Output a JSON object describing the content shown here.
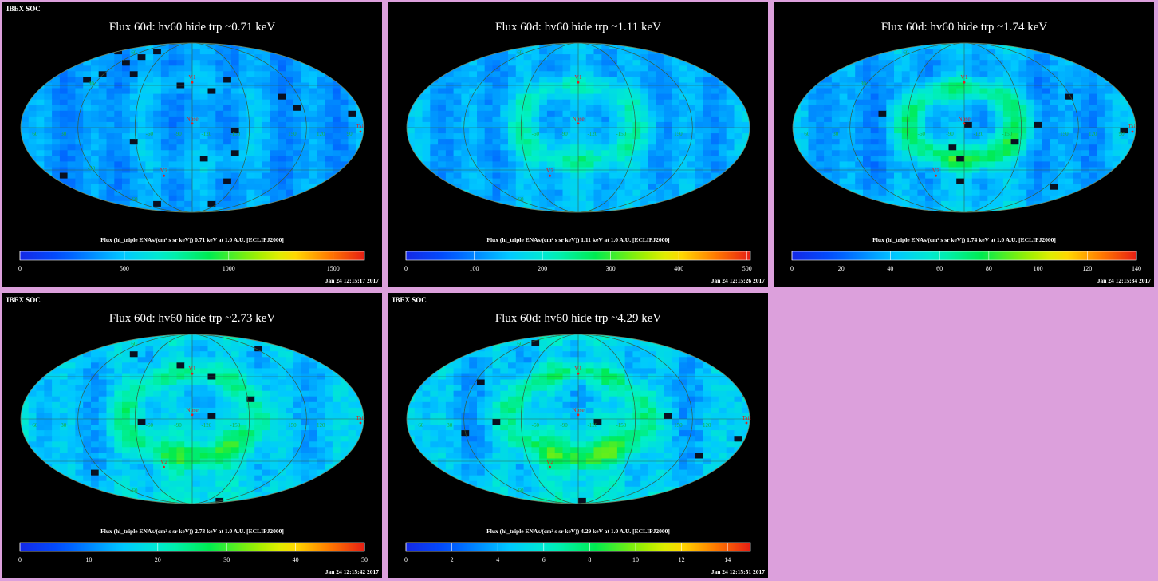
{
  "colors": {
    "background": "#dca0dc",
    "panel": "#000000",
    "grid": "#19b03a",
    "marker": "#e02020"
  },
  "chart_data": [
    {
      "type": "heatmap",
      "source_label": "IBEX SOC",
      "title": "Flux   60d: hv60 hide trp ~0.71 keV",
      "caption": "Flux (hi_triple ENAs/(cm² s sr keV))  0.71 keV at 1.0 A.U. [ECLIPJ2000]",
      "colorbar": {
        "range": [
          0,
          1650
        ],
        "ticks": [
          0,
          500,
          1000,
          1500
        ],
        "tick_labels": [
          "0",
          "500",
          "1000",
          "1500"
        ]
      },
      "timestamp": "Jan 24 12:15:17 2017",
      "markers": [
        {
          "label": "V1",
          "lon": 255,
          "lat": 35
        },
        {
          "label": "Nose",
          "lon": 255,
          "lat": 5
        },
        {
          "label": "V2",
          "lon": 290,
          "lat": -32
        },
        {
          "label": "Tail",
          "lon": 75,
          "lat": -5
        }
      ],
      "grid_labels": [
        {
          "text": "60",
          "lon": 60,
          "lat": 0
        },
        {
          "text": "30",
          "lon": 30,
          "lat": 0
        },
        {
          "text": "-60",
          "lon": -60,
          "lat": 0
        },
        {
          "text": "-90",
          "lon": -90,
          "lat": 0
        },
        {
          "text": "-120",
          "lon": -120,
          "lat": 0
        },
        {
          "text": "-150",
          "lon": -150,
          "lat": 0
        },
        {
          "text": "150",
          "lon": 150,
          "lat": 0
        },
        {
          "text": "120",
          "lon": 120,
          "lat": 0
        },
        {
          "text": "90",
          "lon": 90,
          "lat": 0
        },
        {
          "text": "60",
          "lon": 0,
          "lat": 60
        },
        {
          "text": "30",
          "lon": 0,
          "lat": 30
        },
        {
          "text": "-30",
          "lon": 0,
          "lat": -30
        },
        {
          "text": "-60",
          "lon": 0,
          "lat": -60
        }
      ],
      "pattern": {
        "base": 0.22,
        "ribbon": 0.06,
        "ribbon_width": 0.5,
        "broad": 0.02,
        "poles": 0.03,
        "noise": 0.07,
        "dark_fraction": 0.015
      }
    },
    {
      "type": "heatmap",
      "source_label": "",
      "title": "Flux   60d: hv60 hide trp ~1.11 keV",
      "caption": "Flux (hi_triple ENAs/(cm² s sr keV))  1.11 keV at 1.0 A.U. [ECLIPJ2000]",
      "colorbar": {
        "range": [
          0,
          505
        ],
        "ticks": [
          0,
          100,
          200,
          300,
          400,
          500
        ],
        "tick_labels": [
          "0",
          "100",
          "200",
          "300",
          "400",
          "500"
        ]
      },
      "timestamp": "Jan 24 12:15:26 2017",
      "markers": [
        {
          "label": "V1",
          "lon": 255,
          "lat": 35
        },
        {
          "label": "Nose",
          "lon": 255,
          "lat": 5
        },
        {
          "label": "V2",
          "lon": 290,
          "lat": -32
        }
      ],
      "grid_labels": [
        {
          "text": "-60",
          "lon": -60,
          "lat": 0
        },
        {
          "text": "-90",
          "lon": -90,
          "lat": 0
        },
        {
          "text": "-120",
          "lon": -120,
          "lat": 0
        },
        {
          "text": "-150",
          "lon": -150,
          "lat": 0
        },
        {
          "text": "150",
          "lon": 150,
          "lat": 0
        },
        {
          "text": "60",
          "lon": 0,
          "lat": 60
        },
        {
          "text": "-60",
          "lon": 0,
          "lat": -60
        }
      ],
      "pattern": {
        "base": 0.24,
        "ribbon": 0.16,
        "ribbon_width": 0.45,
        "broad": 0.06,
        "poles": 0.05,
        "noise": 0.08,
        "dark_fraction": 0.0
      }
    },
    {
      "type": "heatmap",
      "source_label": "",
      "title": "Flux   60d: hv60 hide trp ~1.74 keV",
      "caption": "Flux (hi_triple ENAs/(cm² s sr keV))  1.74 keV at 1.0 A.U. [ECLIPJ2000]",
      "colorbar": {
        "range": [
          0,
          140
        ],
        "ticks": [
          0,
          20,
          40,
          60,
          80,
          100,
          120,
          140
        ],
        "tick_labels": [
          "0",
          "20",
          "40",
          "60",
          "80",
          "100",
          "120",
          "140"
        ]
      },
      "timestamp": "Jan 24 12:15:34 2017",
      "markers": [
        {
          "label": "V1",
          "lon": 255,
          "lat": 35
        },
        {
          "label": "Nose",
          "lon": 255,
          "lat": 5
        },
        {
          "label": "V2",
          "lon": 290,
          "lat": -32
        },
        {
          "label": "Tail",
          "lon": 75,
          "lat": -5
        }
      ],
      "grid_labels": [
        {
          "text": "60",
          "lon": 60,
          "lat": 0
        },
        {
          "text": "30",
          "lon": 30,
          "lat": 0
        },
        {
          "text": "-60",
          "lon": -60,
          "lat": 0
        },
        {
          "text": "-90",
          "lon": -90,
          "lat": 0
        },
        {
          "text": "-120",
          "lon": -120,
          "lat": 0
        },
        {
          "text": "-150",
          "lon": -150,
          "lat": 0
        },
        {
          "text": "150",
          "lon": 150,
          "lat": 0
        },
        {
          "text": "120",
          "lon": 120,
          "lat": 0
        },
        {
          "text": "90",
          "lon": 90,
          "lat": 0
        },
        {
          "text": "60",
          "lon": 0,
          "lat": 60
        },
        {
          "text": "30",
          "lon": 0,
          "lat": 30
        }
      ],
      "pattern": {
        "base": 0.22,
        "ribbon": 0.26,
        "ribbon_width": 0.42,
        "broad": 0.08,
        "poles": 0.1,
        "noise": 0.08,
        "dark_fraction": 0.01
      }
    },
    {
      "type": "heatmap",
      "source_label": "IBEX SOC",
      "title": "Flux   60d: hv60 hide trp ~2.73 keV",
      "caption": "Flux (hi_triple ENAs/(cm² s sr keV))  2.73 keV at 1.0 A.U. [ECLIPJ2000]",
      "colorbar": {
        "range": [
          0,
          50
        ],
        "ticks": [
          0,
          10,
          20,
          30,
          40,
          50
        ],
        "tick_labels": [
          "0",
          "10",
          "20",
          "30",
          "40",
          "50"
        ]
      },
      "timestamp": "Jan 24 12:15:42 2017",
      "markers": [
        {
          "label": "V1",
          "lon": 255,
          "lat": 35
        },
        {
          "label": "Nose",
          "lon": 255,
          "lat": 5
        },
        {
          "label": "V2",
          "lon": 290,
          "lat": -32
        },
        {
          "label": "Tail",
          "lon": 75,
          "lat": -5
        }
      ],
      "grid_labels": [
        {
          "text": "60",
          "lon": 60,
          "lat": 0
        },
        {
          "text": "30",
          "lon": 30,
          "lat": 0
        },
        {
          "text": "-60",
          "lon": -60,
          "lat": 0
        },
        {
          "text": "-90",
          "lon": -90,
          "lat": 0
        },
        {
          "text": "-120",
          "lon": -120,
          "lat": 0
        },
        {
          "text": "-150",
          "lon": -150,
          "lat": 0
        },
        {
          "text": "150",
          "lon": 150,
          "lat": 0
        },
        {
          "text": "120",
          "lon": 120,
          "lat": 0
        },
        {
          "text": "60",
          "lon": 0,
          "lat": 60
        },
        {
          "text": "-60",
          "lon": 0,
          "lat": -60
        }
      ],
      "pattern": {
        "base": 0.26,
        "ribbon": 0.2,
        "ribbon_width": 0.5,
        "broad": 0.12,
        "poles": 0.12,
        "noise": 0.09,
        "dark_fraction": 0.008
      }
    },
    {
      "type": "heatmap",
      "source_label": "IBEX SOC",
      "title": "Flux   60d: hv60 hide trp ~4.29 keV",
      "caption": "Flux (hi_triple ENAs/(cm² s sr keV))  4.29 keV at 1.0 A.U. [ECLIPJ2000]",
      "colorbar": {
        "range": [
          0,
          15
        ],
        "ticks": [
          0,
          2,
          4,
          6,
          8,
          10,
          12,
          14
        ],
        "tick_labels": [
          "0",
          "2",
          "4",
          "6",
          "8",
          "10",
          "12",
          "14"
        ]
      },
      "timestamp": "Jan 24 12:15:51 2017",
      "markers": [
        {
          "label": "V1",
          "lon": 255,
          "lat": 35
        },
        {
          "label": "Nose",
          "lon": 255,
          "lat": 5
        },
        {
          "label": "V2",
          "lon": 290,
          "lat": -32
        },
        {
          "label": "Tail",
          "lon": 75,
          "lat": -5
        }
      ],
      "grid_labels": [
        {
          "text": "60",
          "lon": 60,
          "lat": 0
        },
        {
          "text": "30",
          "lon": 30,
          "lat": 0
        },
        {
          "text": "-60",
          "lon": -60,
          "lat": 0
        },
        {
          "text": "-90",
          "lon": -90,
          "lat": 0
        },
        {
          "text": "-120",
          "lon": -120,
          "lat": 0
        },
        {
          "text": "-150",
          "lon": -150,
          "lat": 0
        },
        {
          "text": "150",
          "lon": 150,
          "lat": 0
        },
        {
          "text": "120",
          "lon": 120,
          "lat": 0
        },
        {
          "text": "60",
          "lon": 0,
          "lat": 60
        },
        {
          "text": "-60",
          "lon": 0,
          "lat": -60
        }
      ],
      "pattern": {
        "base": 0.25,
        "ribbon": 0.22,
        "ribbon_width": 0.5,
        "broad": 0.14,
        "poles": 0.14,
        "noise": 0.1,
        "dark_fraction": 0.01
      }
    }
  ]
}
